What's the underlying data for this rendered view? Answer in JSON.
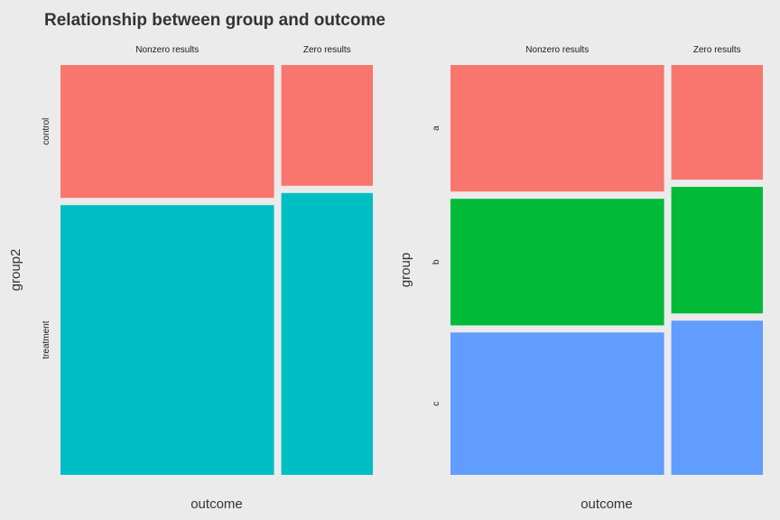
{
  "title": "Relationship between group and outcome",
  "chart_data": [
    {
      "type": "mosaic",
      "xlabel": "outcome",
      "ylabel": "group2",
      "columns": [
        "Nonzero results",
        "Zero results"
      ],
      "column_widths": [
        0.7,
        0.3
      ],
      "rows": [
        "control",
        "treatment"
      ],
      "colors": [
        "#F8766D",
        "#00BFC4"
      ],
      "proportions": [
        [
          0.33,
          0.67
        ],
        [
          0.3,
          0.7
        ]
      ]
    },
    {
      "type": "mosaic",
      "xlabel": "outcome",
      "ylabel": "group",
      "columns": [
        "Nonzero results",
        "Zero results"
      ],
      "column_widths": [
        0.7,
        0.3
      ],
      "rows": [
        "a",
        "b",
        "c"
      ],
      "colors": [
        "#F8766D",
        "#00BA38",
        "#619CFF"
      ],
      "proportions": [
        [
          0.32,
          0.32,
          0.36
        ],
        [
          0.29,
          0.32,
          0.39
        ]
      ]
    }
  ]
}
